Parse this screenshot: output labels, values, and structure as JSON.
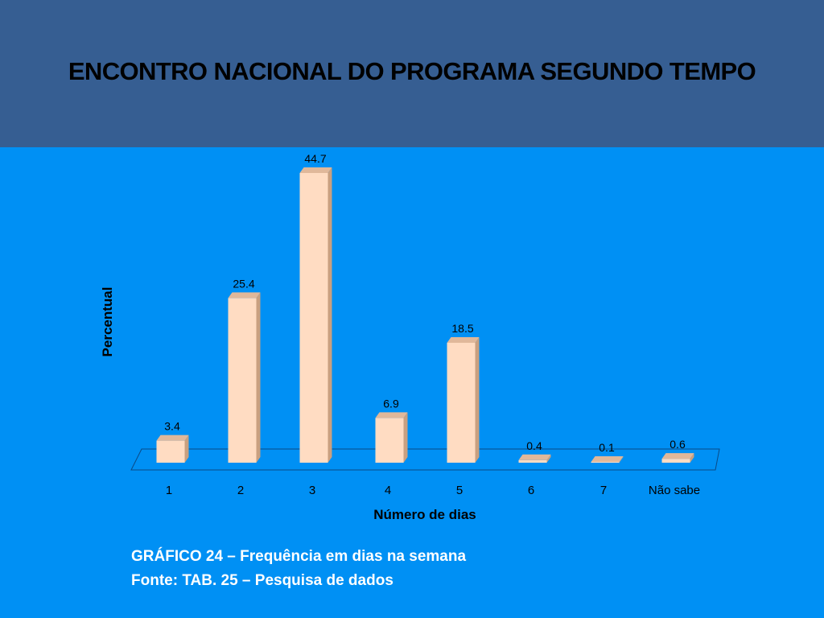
{
  "slide": {
    "title": "ENCONTRO NACIONAL DO PROGRAMA SEGUNDO TEMPO",
    "caption_line1": "GRÁFICO 24 – Frequência em dias na semana",
    "caption_line2": "Fonte: TAB. 25 – Pesquisa de dados"
  },
  "colors": {
    "header": "#365e92",
    "background": "#0090f4",
    "bar_front": "#ffdcc2",
    "bar_top": "#e0b89a",
    "bar_side": "#c9a080"
  },
  "chart_data": {
    "type": "bar",
    "style": "3d-column",
    "categories": [
      "1",
      "2",
      "3",
      "4",
      "5",
      "6",
      "7",
      "Não sabe"
    ],
    "values": [
      3.4,
      25.4,
      44.7,
      6.9,
      18.5,
      0.4,
      0.1,
      0.6
    ],
    "value_labels": [
      "3.4",
      "25.4",
      "44.7",
      "6.9",
      "18.5",
      "0.4",
      "0.1",
      "0.6"
    ],
    "xlabel": "Número de dias",
    "ylabel": "Percentual",
    "ylim": [
      0,
      50
    ],
    "grid": false,
    "legend": "none"
  }
}
